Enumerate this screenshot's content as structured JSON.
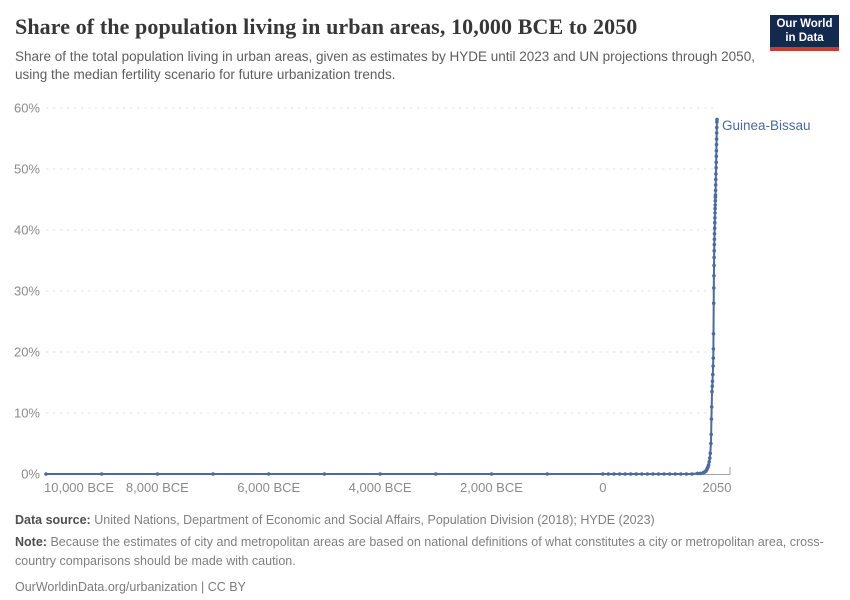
{
  "header": {
    "title": "Share of the population living in urban areas, 10,000 BCE to 2050",
    "subtitle": "Share of the total population living in urban areas, given as estimates by HYDE until 2023 and UN projections through 2050, using the median fertility scenario for future urbanization trends.",
    "logo": {
      "line1": "Our World",
      "line2": "in Data",
      "bg_color": "#13294e",
      "accent_color": "#cb3b31"
    }
  },
  "chart_data": {
    "type": "line",
    "title": "Share of the population living in urban areas, 10,000 BCE to 2050",
    "xlabel": "",
    "ylabel": "",
    "xlim": [
      -10000,
      2050
    ],
    "ylim": [
      0,
      60
    ],
    "grid": "horizontal-dashed",
    "legend_position": "end-of-line-label",
    "x_ticks": [
      {
        "year": -10000,
        "label": "10,000 BCE"
      },
      {
        "year": -8000,
        "label": "8,000 BCE"
      },
      {
        "year": -6000,
        "label": "6,000 BCE"
      },
      {
        "year": -4000,
        "label": "4,000 BCE"
      },
      {
        "year": -2000,
        "label": "2,000 BCE"
      },
      {
        "year": 0,
        "label": "0"
      },
      {
        "year": 2050,
        "label": "2050"
      }
    ],
    "y_ticks": [
      {
        "value": 0,
        "label": "0%"
      },
      {
        "value": 10,
        "label": "10%"
      },
      {
        "value": 20,
        "label": "20%"
      },
      {
        "value": 30,
        "label": "30%"
      },
      {
        "value": 40,
        "label": "40%"
      },
      {
        "value": 50,
        "label": "50%"
      },
      {
        "value": 60,
        "label": "60%"
      }
    ],
    "series": [
      {
        "name": "Guinea-Bissau",
        "color": "#4c6a9d",
        "points": [
          [
            -10000,
            0
          ],
          [
            -9000,
            0
          ],
          [
            -8000,
            0
          ],
          [
            -7000,
            0
          ],
          [
            -6000,
            0
          ],
          [
            -5000,
            0
          ],
          [
            -4000,
            0
          ],
          [
            -3000,
            0
          ],
          [
            -2000,
            0
          ],
          [
            -1000,
            0
          ],
          [
            0,
            0
          ],
          [
            100,
            0
          ],
          [
            200,
            0
          ],
          [
            300,
            0
          ],
          [
            400,
            0
          ],
          [
            500,
            0
          ],
          [
            600,
            0
          ],
          [
            700,
            0
          ],
          [
            800,
            0
          ],
          [
            900,
            0
          ],
          [
            1000,
            0
          ],
          [
            1100,
            0
          ],
          [
            1200,
            0
          ],
          [
            1300,
            0
          ],
          [
            1400,
            0
          ],
          [
            1500,
            0
          ],
          [
            1600,
            0
          ],
          [
            1700,
            0.1
          ],
          [
            1750,
            0.1
          ],
          [
            1800,
            0.2
          ],
          [
            1820,
            0.3
          ],
          [
            1840,
            0.4
          ],
          [
            1850,
            0.5
          ],
          [
            1860,
            0.6
          ],
          [
            1870,
            0.8
          ],
          [
            1880,
            1.0
          ],
          [
            1890,
            1.2
          ],
          [
            1900,
            1.5
          ],
          [
            1910,
            2.0
          ],
          [
            1920,
            2.6
          ],
          [
            1930,
            3.4
          ],
          [
            1940,
            5.0
          ],
          [
            1945,
            6.5
          ],
          [
            1950,
            9.0
          ],
          [
            1955,
            11.0
          ],
          [
            1960,
            13.5
          ],
          [
            1965,
            14.4
          ],
          [
            1970,
            15.2
          ],
          [
            1975,
            16.3
          ],
          [
            1980,
            17.7
          ],
          [
            1983,
            19.0
          ],
          [
            1985,
            20.5
          ],
          [
            1987,
            23.0
          ],
          [
            1990,
            28.0
          ],
          [
            1992,
            30.5
          ],
          [
            1994,
            32.5
          ],
          [
            1996,
            34.2
          ],
          [
            1998,
            35.5
          ],
          [
            2000,
            36.6
          ],
          [
            2002,
            37.6
          ],
          [
            2004,
            38.5
          ],
          [
            2006,
            39.4
          ],
          [
            2008,
            40.3
          ],
          [
            2010,
            41.2
          ],
          [
            2012,
            42.0
          ],
          [
            2014,
            42.8
          ],
          [
            2016,
            43.5
          ],
          [
            2018,
            44.1
          ],
          [
            2020,
            44.8
          ],
          [
            2022,
            45.4
          ],
          [
            2023,
            45.7
          ],
          [
            2025,
            46.5
          ],
          [
            2027,
            47.4
          ],
          [
            2029,
            48.3
          ],
          [
            2031,
            49.2
          ],
          [
            2033,
            50.2
          ],
          [
            2035,
            51.1
          ],
          [
            2037,
            52.1
          ],
          [
            2039,
            53.0
          ],
          [
            2041,
            54.0
          ],
          [
            2043,
            54.9
          ],
          [
            2045,
            55.9
          ],
          [
            2047,
            56.8
          ],
          [
            2049,
            57.7
          ],
          [
            2050,
            58.1
          ]
        ]
      }
    ],
    "style": {
      "grid_color": "#e2e2e2",
      "axis_color": "#a3a3a3",
      "tick_label_color": "#8b8b8b"
    }
  },
  "footer": {
    "data_source_label": "Data source:",
    "data_source": "United Nations, Department of Economic and Social Affairs, Population Division (2018); HYDE (2023)",
    "note_label": "Note:",
    "note": "Because the estimates of city and metropolitan areas are based on national definitions of what constitutes a city or metropolitan area, cross-country comparisons should be made with caution.",
    "citation": "OurWorldinData.org/urbanization | CC BY"
  }
}
